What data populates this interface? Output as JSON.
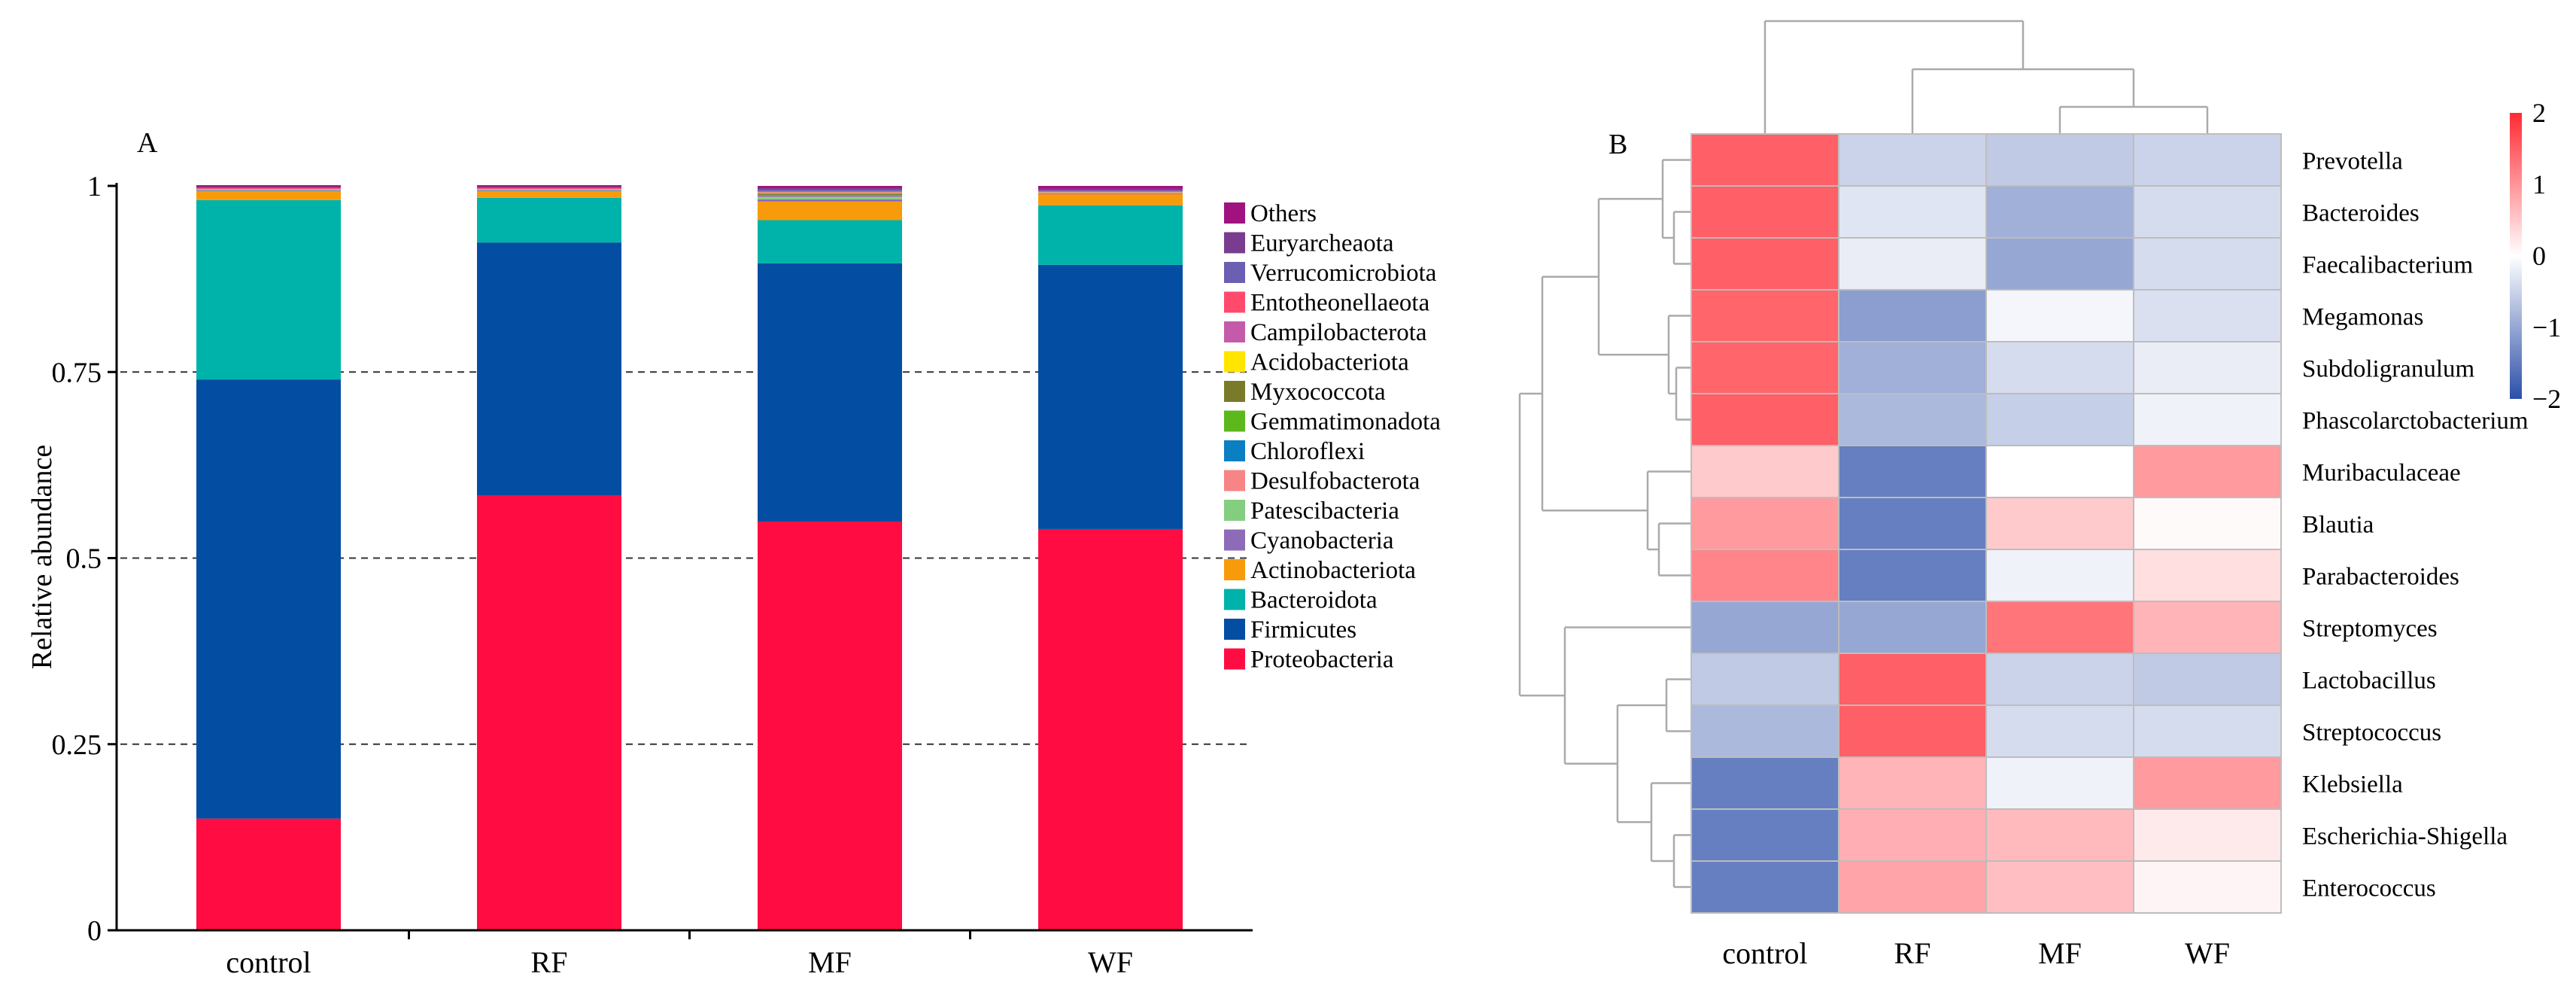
{
  "chart_data": [
    {
      "type": "bar",
      "panel_label": "A",
      "stacked": true,
      "ylabel": "Relative abundance",
      "xlabel": "",
      "ylim": [
        0,
        1
      ],
      "yticks": [
        "0",
        "0.25",
        "0.5",
        "0.75",
        "1"
      ],
      "ytick_values": [
        0,
        0.25,
        0.5,
        0.75,
        1
      ],
      "categories": [
        "control",
        "RF",
        "MF",
        "WF"
      ],
      "series": [
        {
          "name": "Proteobacteria",
          "color": "#FF0D42",
          "values": [
            0.15,
            0.584,
            0.549,
            0.539
          ]
        },
        {
          "name": "Firmicutes",
          "color": "#034EA2",
          "values": [
            0.59,
            0.34,
            0.347,
            0.355
          ]
        },
        {
          "name": "Bacteroidota",
          "color": "#00B3AA",
          "values": [
            0.241,
            0.06,
            0.058,
            0.08
          ]
        },
        {
          "name": "Actinobacteriota",
          "color": "#F89B0B",
          "values": [
            0.012,
            0.009,
            0.025,
            0.015
          ]
        },
        {
          "name": "Cyanobacteria",
          "color": "#8D6BB8",
          "values": [
            0.001,
            0.001,
            0.003,
            0.001
          ]
        },
        {
          "name": "Patescibacteria",
          "color": "#84CE7F",
          "values": [
            0.001,
            0.001,
            0.002,
            0.001
          ]
        },
        {
          "name": "Desulfobacterota",
          "color": "#F78585",
          "values": [
            0.001,
            0.001,
            0.002,
            0.001
          ]
        },
        {
          "name": "Chloroflexi",
          "color": "#0A7FC1",
          "values": [
            0.0,
            0.0,
            0.001,
            0.0
          ]
        },
        {
          "name": "Gemmatimonadota",
          "color": "#5CB81C",
          "values": [
            0.0,
            0.0,
            0.001,
            0.0
          ]
        },
        {
          "name": "Myxococcota",
          "color": "#7A7A2B",
          "values": [
            0.0,
            0.0,
            0.002,
            0.0
          ]
        },
        {
          "name": "Acidobacteriota",
          "color": "#FFE500",
          "values": [
            0.0,
            0.0,
            0.001,
            0.0
          ]
        },
        {
          "name": "Campilobacterota",
          "color": "#C45BAA",
          "values": [
            0.0,
            0.0,
            0.001,
            0.0
          ]
        },
        {
          "name": "Entotheonellaeota",
          "color": "#FF4A6E",
          "values": [
            0.001,
            0.001,
            0.001,
            0.001
          ]
        },
        {
          "name": "Verrucomicrobiota",
          "color": "#6A5FB2",
          "values": [
            0.001,
            0.001,
            0.002,
            0.001
          ]
        },
        {
          "name": "Euryarcheaota",
          "color": "#7A3C8E",
          "values": [
            0.001,
            0.001,
            0.002,
            0.002
          ]
        },
        {
          "name": "Others",
          "color": "#A0137F",
          "values": [
            0.002,
            0.002,
            0.003,
            0.004
          ]
        }
      ],
      "legend_order": [
        "Others",
        "Euryarcheaota",
        "Verrucomicrobiota",
        "Entotheonellaeota",
        "Campilobacterota",
        "Acidobacteriota",
        "Myxococcota",
        "Gemmatimonadota",
        "Chloroflexi",
        "Desulfobacterota",
        "Patescibacteria",
        "Cyanobacteria",
        "Actinobacteriota",
        "Bacteroidota",
        "Firmicutes",
        "Proteobacteria"
      ],
      "legend_position": "right",
      "grid": "dashed horizontal at 0.25, 0.5, 0.75"
    },
    {
      "type": "heatmap",
      "panel_label": "B",
      "columns": [
        "control",
        "RF",
        "MF",
        "WF"
      ],
      "rows": [
        "Prevotella",
        "Bacteroides",
        "Faecalibacterium",
        "Megamonas",
        "Subdoligranulum",
        "Phascolarctobacterium",
        "Muribaculaceae",
        "Blautia",
        "Parabacteroides",
        "Streptomyces",
        "Lactobacillus",
        "Streptococcus",
        "Klebsiella",
        "Escherichia-Shigella",
        "Enterococcus"
      ],
      "values": [
        [
          1.5,
          -0.5,
          -0.6,
          -0.5
        ],
        [
          1.5,
          -0.3,
          -0.9,
          -0.4
        ],
        [
          1.5,
          -0.2,
          -1.0,
          -0.4
        ],
        [
          1.45,
          -1.1,
          -0.1,
          -0.35
        ],
        [
          1.45,
          -0.9,
          -0.4,
          -0.2
        ],
        [
          1.5,
          -0.8,
          -0.55,
          -0.15
        ],
        [
          0.5,
          -1.45,
          0.0,
          0.95
        ],
        [
          0.95,
          -1.45,
          0.5,
          0.05
        ],
        [
          1.15,
          -1.45,
          -0.15,
          0.3
        ],
        [
          -1.0,
          -1.0,
          1.3,
          0.7
        ],
        [
          -0.6,
          1.5,
          -0.5,
          -0.6
        ],
        [
          -0.8,
          1.5,
          -0.4,
          -0.4
        ],
        [
          -1.45,
          0.7,
          -0.15,
          0.95
        ],
        [
          -1.45,
          0.75,
          0.65,
          0.2
        ],
        [
          -1.45,
          0.85,
          0.6,
          0.1
        ]
      ],
      "color_scale": {
        "min": -2,
        "max": 2,
        "low": "#2C4FA8",
        "mid": "#FFFFFF",
        "high": "#FF2A33",
        "ticks": [
          "2",
          "1",
          "0",
          "−1",
          "−2"
        ],
        "tick_values": [
          2,
          1,
          0,
          -1,
          -2
        ]
      },
      "row_dendrogram": true,
      "column_dendrogram": true
    }
  ]
}
